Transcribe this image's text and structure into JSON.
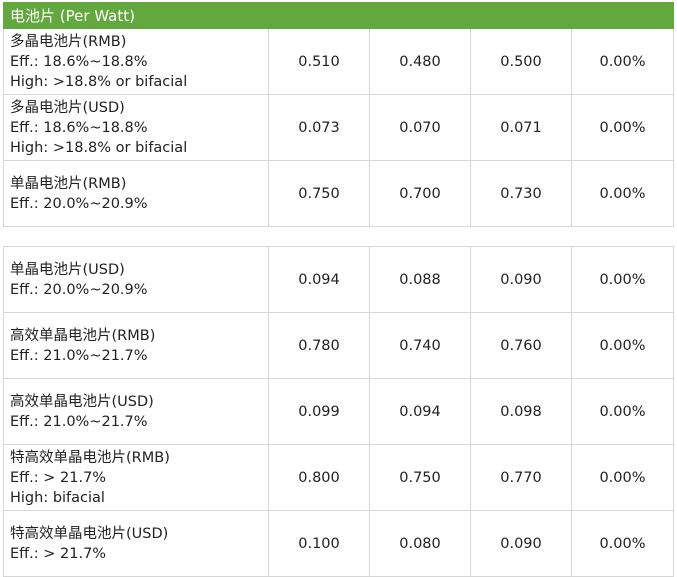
{
  "header": {
    "title": "电池片 (Per Watt)",
    "color": "#62a83e"
  },
  "table1": [
    {
      "lines": [
        "多晶电池片(RMB)",
        "Eff.: 18.6%~18.8%",
        "High: >18.8% or bifacial"
      ],
      "values": [
        "0.510",
        "0.480",
        "0.500",
        "0.00%"
      ]
    },
    {
      "lines": [
        "多晶电池片(USD)",
        "Eff.: 18.6%~18.8%",
        "High: >18.8% or bifacial"
      ],
      "values": [
        "0.073",
        "0.070",
        "0.071",
        "0.00%"
      ]
    },
    {
      "lines": [
        "单晶电池片(RMB)",
        "Eff.: 20.0%~20.9%"
      ],
      "values": [
        "0.750",
        "0.700",
        "0.730",
        "0.00%"
      ]
    }
  ],
  "table2": [
    {
      "lines": [
        "单晶电池片(USD)",
        "Eff.: 20.0%~20.9%"
      ],
      "values": [
        "0.094",
        "0.088",
        "0.090",
        "0.00%"
      ]
    },
    {
      "lines": [
        "高效单晶电池片(RMB)",
        "Eff.: 21.0%~21.7%"
      ],
      "values": [
        "0.780",
        "0.740",
        "0.760",
        "0.00%"
      ]
    },
    {
      "lines": [
        "高效单晶电池片(USD)",
        "Eff.: 21.0%~21.7%"
      ],
      "values": [
        "0.099",
        "0.094",
        "0.098",
        "0.00%"
      ]
    },
    {
      "lines": [
        "特高效单晶电池片(RMB)",
        "Eff.: > 21.7%",
        "High: bifacial"
      ],
      "values": [
        "0.800",
        "0.750",
        "0.770",
        "0.00%"
      ]
    },
    {
      "lines": [
        "特高效单晶电池片(USD)",
        "Eff.: > 21.7%"
      ],
      "values": [
        "0.100",
        "0.080",
        "0.090",
        "0.00%"
      ]
    }
  ]
}
